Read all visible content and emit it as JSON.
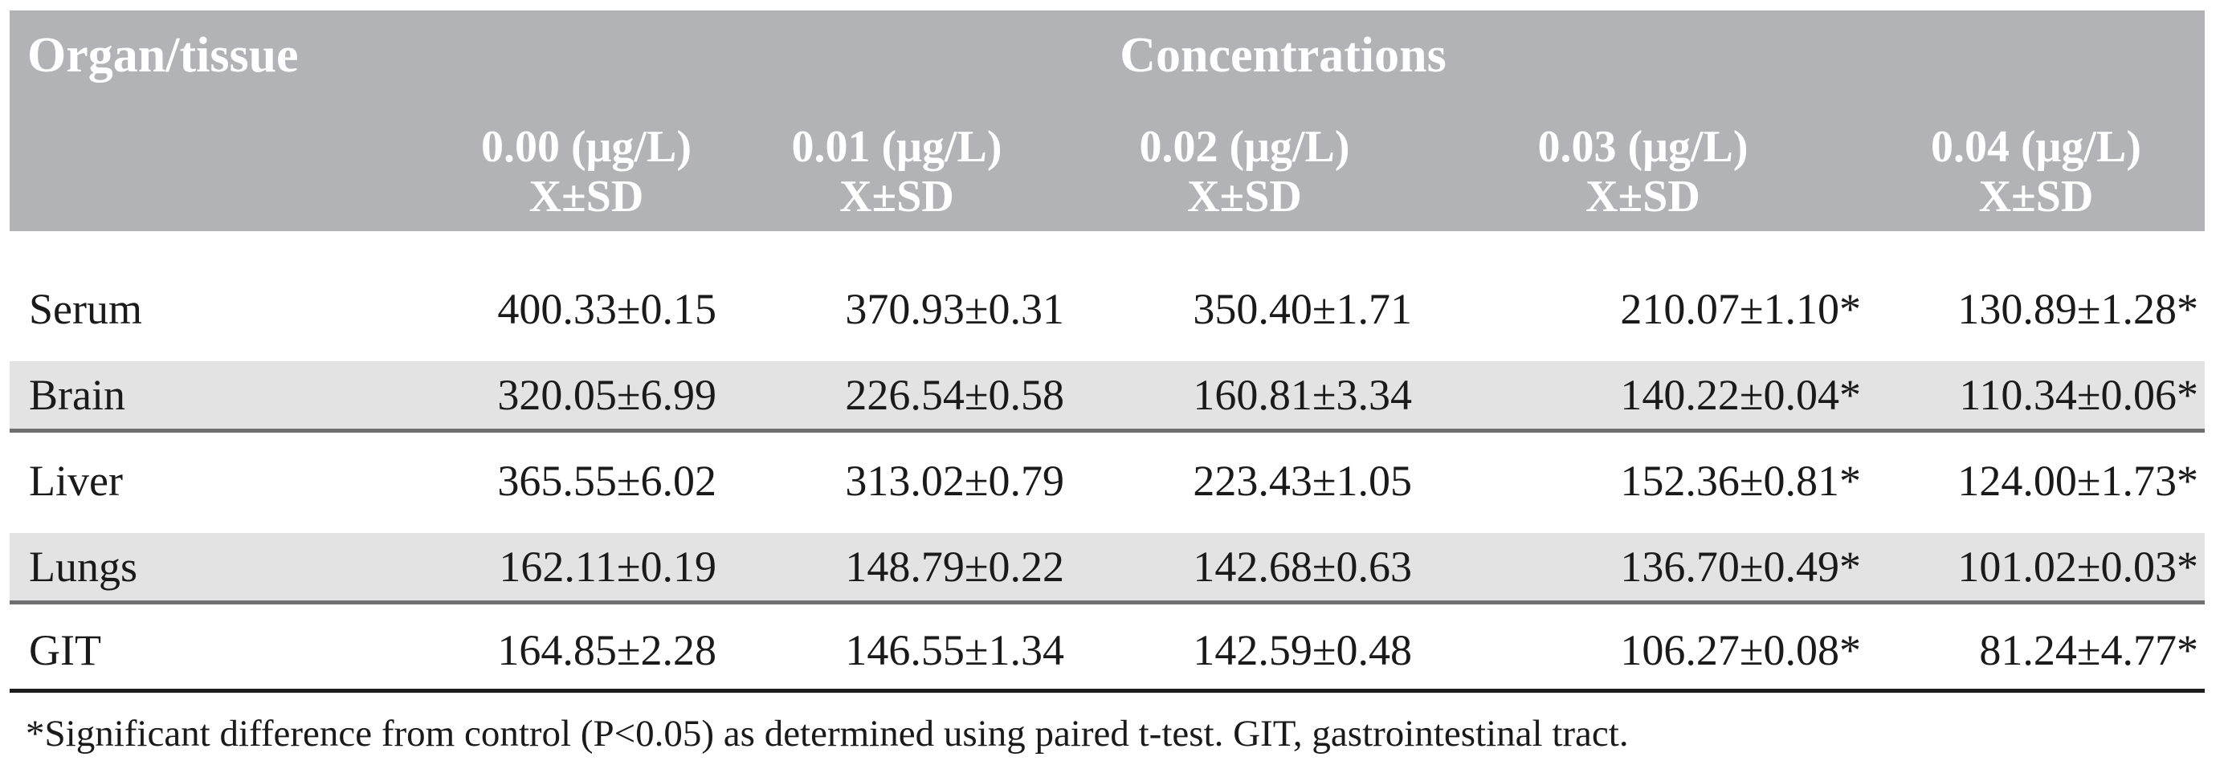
{
  "colors": {
    "header_bg": "#b1b3b6",
    "header_text": "#ffffff",
    "stripe_bg": "#e3e3e4",
    "stripe_border": "#6f6f71",
    "bottom_border": "#1d1d1d",
    "body_text": "#1a1a1a"
  },
  "table": {
    "col1_header": "Organ/tissue",
    "group_header": "Concentrations",
    "columns": [
      {
        "label": "0.00 (μg/L)",
        "sub": "X±SD"
      },
      {
        "label": "0.01 (μg/L)",
        "sub": "X±SD"
      },
      {
        "label": "0.02 (μg/L)",
        "sub": "X±SD"
      },
      {
        "label": "0.03 (μg/L)",
        "sub": "X±SD"
      },
      {
        "label": "0.04 (μg/L)",
        "sub": "X±SD"
      }
    ],
    "rows": [
      {
        "organ": "Serum",
        "values": [
          "400.33±0.15",
          "370.93±0.31",
          "350.40±1.71",
          "210.07±1.10*",
          "130.89±1.28*"
        ]
      },
      {
        "organ": "Brain",
        "values": [
          "320.05±6.99",
          "226.54±0.58",
          "160.81±3.34",
          "140.22±0.04*",
          "110.34±0.06*"
        ]
      },
      {
        "organ": "Liver",
        "values": [
          "365.55±6.02",
          "313.02±0.79",
          "223.43±1.05",
          "152.36±0.81*",
          "124.00±1.73*"
        ]
      },
      {
        "organ": "Lungs",
        "values": [
          "162.11±0.19",
          "148.79±0.22",
          "142.68±0.63",
          "136.70±0.49*",
          "101.02±0.03*"
        ]
      },
      {
        "organ": "GIT",
        "values": [
          "164.85±2.28",
          "146.55±1.34",
          "142.59±0.48",
          "106.27±0.08*",
          "81.24±4.77*"
        ]
      }
    ],
    "footnote": "*Significant difference from control (P<0.05) as determined using paired t-test. GIT, gastrointestinal tract."
  },
  "chart_data": {
    "type": "table",
    "title": "Concentrations",
    "row_header": "Organ/tissue",
    "categories": [
      "0.00 (μg/L) X±SD",
      "0.01 (μg/L) X±SD",
      "0.02 (μg/L) X±SD",
      "0.03 (μg/L) X±SD",
      "0.04 (μg/L) X±SD"
    ],
    "series": [
      {
        "name": "Serum",
        "values": [
          400.33,
          370.93,
          350.4,
          210.07,
          130.89
        ],
        "sd": [
          0.15,
          0.31,
          1.71,
          1.1,
          1.28
        ],
        "significant": [
          false,
          false,
          false,
          true,
          true
        ]
      },
      {
        "name": "Brain",
        "values": [
          320.05,
          226.54,
          160.81,
          140.22,
          110.34
        ],
        "sd": [
          6.99,
          0.58,
          3.34,
          0.04,
          0.06
        ],
        "significant": [
          false,
          false,
          false,
          true,
          true
        ]
      },
      {
        "name": "Liver",
        "values": [
          365.55,
          313.02,
          223.43,
          152.36,
          124.0
        ],
        "sd": [
          6.02,
          0.79,
          1.05,
          0.81,
          1.73
        ],
        "significant": [
          false,
          false,
          false,
          true,
          true
        ]
      },
      {
        "name": "Lungs",
        "values": [
          162.11,
          148.79,
          142.68,
          136.7,
          101.02
        ],
        "sd": [
          0.19,
          0.22,
          0.63,
          0.49,
          0.03
        ],
        "significant": [
          false,
          false,
          false,
          true,
          true
        ]
      },
      {
        "name": "GIT",
        "values": [
          164.85,
          146.55,
          142.59,
          106.27,
          81.24
        ],
        "sd": [
          2.28,
          1.34,
          0.48,
          0.08,
          4.77
        ],
        "significant": [
          false,
          false,
          false,
          true,
          true
        ]
      }
    ],
    "footnote": "*Significant difference from control (P<0.05) as determined using paired t-test. GIT, gastrointestinal tract."
  }
}
